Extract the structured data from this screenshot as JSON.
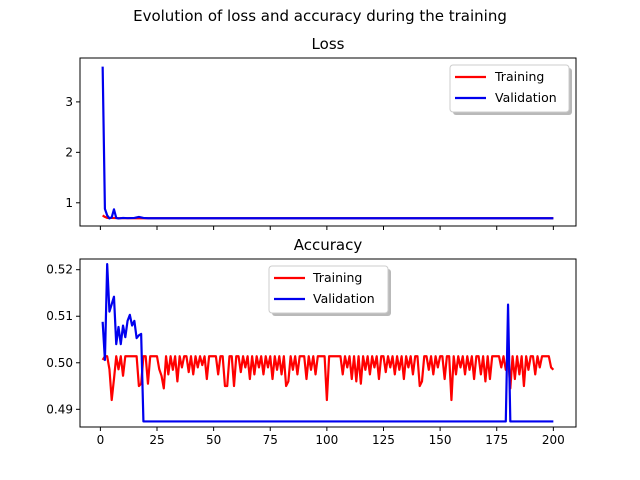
{
  "figure": {
    "suptitle": "Evolution of loss and accuracy during the training"
  },
  "colors": {
    "training": "#ff0000",
    "validation": "#0000ee",
    "axes": "#000000",
    "legend_border": "#cccccc",
    "legend_shadow": "#808080"
  },
  "chart_data": [
    {
      "type": "line",
      "title": "Loss",
      "xlabel": "",
      "ylabel": "",
      "xlim": [
        -9,
        210
      ],
      "ylim": [
        0.54,
        3.87
      ],
      "yticks": [
        1,
        2,
        3
      ],
      "ytick_labels": [
        "1",
        "2",
        "3"
      ],
      "xticks": [
        0,
        25,
        50,
        75,
        100,
        125,
        150,
        175,
        200
      ],
      "show_xtick_labels": false,
      "grid": false,
      "legend": "upper right",
      "series": [
        {
          "name": "Training",
          "color": "#ff0000",
          "points": [
            [
              1,
              0.75
            ],
            [
              2,
              0.72
            ],
            [
              3,
              0.7
            ],
            [
              5,
              0.7
            ],
            [
              8,
              0.695
            ],
            [
              12,
              0.695
            ],
            [
              16,
              0.693
            ],
            [
              20,
              0.693
            ],
            [
              30,
              0.693
            ],
            [
              100,
              0.693
            ],
            [
              200,
              0.693
            ]
          ]
        },
        {
          "name": "Validation",
          "color": "#0000ee",
          "points": [
            [
              1,
              3.7
            ],
            [
              2,
              0.88
            ],
            [
              3,
              0.75
            ],
            [
              4,
              0.69
            ],
            [
              5,
              0.71
            ],
            [
              6,
              0.87
            ],
            [
              7,
              0.7
            ],
            [
              8,
              0.69
            ],
            [
              10,
              0.7
            ],
            [
              12,
              0.695
            ],
            [
              15,
              0.7
            ],
            [
              17,
              0.72
            ],
            [
              19,
              0.7
            ],
            [
              21,
              0.693
            ],
            [
              50,
              0.693
            ],
            [
              100,
              0.693
            ],
            [
              150,
              0.693
            ],
            [
              200,
              0.693
            ]
          ]
        }
      ]
    },
    {
      "type": "line",
      "title": "Accuracy",
      "xlabel": "",
      "ylabel": "",
      "xlim": [
        -9,
        210
      ],
      "ylim": [
        0.4862,
        0.5223
      ],
      "yticks": [
        0.49,
        0.5,
        0.51,
        0.52
      ],
      "ytick_labels": [
        "0.49",
        "0.50",
        "0.51",
        "0.52"
      ],
      "xticks": [
        0,
        25,
        50,
        75,
        100,
        125,
        150,
        175,
        200
      ],
      "xtick_labels": [
        "0",
        "25",
        "50",
        "75",
        "100",
        "125",
        "150",
        "175",
        "200"
      ],
      "grid": false,
      "legend": "upper center",
      "series": [
        {
          "name": "Training",
          "color": "#ff0000",
          "points": [
            [
              1,
              0.5006
            ],
            [
              2,
              0.5014
            ],
            [
              3,
              0.5014
            ],
            [
              4,
              0.4986
            ],
            [
              5,
              0.492
            ],
            [
              6,
              0.4965
            ],
            [
              7,
              0.5014
            ],
            [
              8,
              0.4986
            ],
            [
              9,
              0.5014
            ],
            [
              10,
              0.4972
            ],
            [
              11,
              0.5014
            ],
            [
              12,
              0.5014
            ],
            [
              13,
              0.5014
            ],
            [
              14,
              0.5014
            ],
            [
              15,
              0.5014
            ],
            [
              16,
              0.5014
            ],
            [
              17,
              0.495
            ],
            [
              18,
              0.4955
            ],
            [
              19,
              0.5014
            ],
            [
              20,
              0.5014
            ],
            [
              21,
              0.4955
            ],
            [
              22,
              0.5014
            ],
            [
              23,
              0.5014
            ],
            [
              24,
              0.5014
            ],
            [
              25,
              0.5014
            ],
            [
              26,
              0.4986
            ],
            [
              27,
              0.4972
            ],
            [
              28,
              0.4945
            ],
            [
              29,
              0.5014
            ],
            [
              30,
              0.4975
            ],
            [
              31,
              0.5014
            ],
            [
              32,
              0.4985
            ],
            [
              33,
              0.5014
            ],
            [
              34,
              0.496
            ],
            [
              35,
              0.5014
            ],
            [
              36,
              0.499
            ],
            [
              37,
              0.5014
            ],
            [
              38,
              0.5014
            ],
            [
              39,
              0.498
            ],
            [
              40,
              0.5014
            ],
            [
              41,
              0.4975
            ],
            [
              42,
              0.5014
            ],
            [
              43,
              0.499
            ],
            [
              44,
              0.5014
            ],
            [
              45,
              0.4995
            ],
            [
              46,
              0.5014
            ],
            [
              47,
              0.4965
            ],
            [
              48,
              0.5014
            ],
            [
              49,
              0.5014
            ],
            [
              50,
              0.5014
            ],
            [
              51,
              0.5014
            ],
            [
              52,
              0.4975
            ],
            [
              53,
              0.5014
            ],
            [
              54,
              0.5014
            ],
            [
              55,
              0.495
            ],
            [
              56,
              0.495
            ],
            [
              57,
              0.5014
            ],
            [
              58,
              0.5014
            ],
            [
              59,
              0.495
            ],
            [
              60,
              0.5014
            ],
            [
              61,
              0.5014
            ],
            [
              62,
              0.498
            ],
            [
              63,
              0.5014
            ],
            [
              64,
              0.499
            ],
            [
              65,
              0.5014
            ],
            [
              66,
              0.4965
            ],
            [
              67,
              0.5014
            ],
            [
              68,
              0.4975
            ],
            [
              69,
              0.5014
            ],
            [
              70,
              0.499
            ],
            [
              71,
              0.5014
            ],
            [
              72,
              0.4975
            ],
            [
              73,
              0.5014
            ],
            [
              74,
              0.499
            ],
            [
              75,
              0.5014
            ],
            [
              76,
              0.4965
            ],
            [
              77,
              0.5014
            ],
            [
              78,
              0.4985
            ],
            [
              79,
              0.5014
            ],
            [
              80,
              0.4975
            ],
            [
              81,
              0.5014
            ],
            [
              82,
              0.495
            ],
            [
              83,
              0.496
            ],
            [
              84,
              0.5014
            ],
            [
              85,
              0.4985
            ],
            [
              86,
              0.5014
            ],
            [
              87,
              0.4975
            ],
            [
              88,
              0.5014
            ],
            [
              89,
              0.5014
            ],
            [
              90,
              0.5014
            ],
            [
              91,
              0.4965
            ],
            [
              92,
              0.5014
            ],
            [
              93,
              0.4985
            ],
            [
              94,
              0.5014
            ],
            [
              95,
              0.4975
            ],
            [
              96,
              0.5014
            ],
            [
              97,
              0.5014
            ],
            [
              98,
              0.5014
            ],
            [
              99,
              0.5014
            ],
            [
              100,
              0.492
            ],
            [
              101,
              0.5014
            ],
            [
              102,
              0.5014
            ],
            [
              103,
              0.5014
            ],
            [
              104,
              0.5014
            ],
            [
              105,
              0.5014
            ],
            [
              106,
              0.5014
            ],
            [
              107,
              0.4975
            ],
            [
              108,
              0.5014
            ],
            [
              109,
              0.499
            ],
            [
              110,
              0.5014
            ],
            [
              111,
              0.4965
            ],
            [
              112,
              0.5014
            ],
            [
              113,
              0.496
            ],
            [
              114,
              0.5014
            ],
            [
              115,
              0.4955
            ],
            [
              116,
              0.5014
            ],
            [
              117,
              0.4985
            ],
            [
              118,
              0.5014
            ],
            [
              119,
              0.4975
            ],
            [
              120,
              0.5014
            ],
            [
              121,
              0.499
            ],
            [
              122,
              0.5014
            ],
            [
              123,
              0.4965
            ],
            [
              124,
              0.5014
            ],
            [
              125,
              0.5014
            ],
            [
              126,
              0.498
            ],
            [
              127,
              0.5014
            ],
            [
              128,
              0.499
            ],
            [
              129,
              0.5014
            ],
            [
              130,
              0.4975
            ],
            [
              131,
              0.5014
            ],
            [
              132,
              0.4985
            ],
            [
              133,
              0.5014
            ],
            [
              134,
              0.4965
            ],
            [
              135,
              0.5014
            ],
            [
              136,
              0.499
            ],
            [
              137,
              0.5014
            ],
            [
              138,
              0.4975
            ],
            [
              139,
              0.5014
            ],
            [
              140,
              0.5014
            ],
            [
              141,
              0.495
            ],
            [
              142,
              0.496
            ],
            [
              143,
              0.5014
            ],
            [
              144,
              0.5014
            ],
            [
              145,
              0.4985
            ],
            [
              146,
              0.5014
            ],
            [
              147,
              0.4975
            ],
            [
              148,
              0.5014
            ],
            [
              149,
              0.499
            ],
            [
              150,
              0.5014
            ],
            [
              151,
              0.5014
            ],
            [
              152,
              0.4965
            ],
            [
              153,
              0.5014
            ],
            [
              154,
              0.5014
            ],
            [
              155,
              0.492
            ],
            [
              156,
              0.5014
            ],
            [
              157,
              0.4975
            ],
            [
              158,
              0.5014
            ],
            [
              159,
              0.499
            ],
            [
              160,
              0.5014
            ],
            [
              161,
              0.4975
            ],
            [
              162,
              0.5014
            ],
            [
              163,
              0.4985
            ],
            [
              164,
              0.5014
            ],
            [
              165,
              0.4965
            ],
            [
              166,
              0.5014
            ],
            [
              167,
              0.5014
            ],
            [
              168,
              0.4975
            ],
            [
              169,
              0.5014
            ],
            [
              170,
              0.496
            ],
            [
              171,
              0.5014
            ],
            [
              172,
              0.4965
            ],
            [
              173,
              0.5014
            ],
            [
              174,
              0.5014
            ],
            [
              175,
              0.5014
            ],
            [
              176,
              0.5014
            ],
            [
              177,
              0.499
            ],
            [
              178,
              0.5014
            ],
            [
              179,
              0.4985
            ],
            [
              180,
              0.5014
            ],
            [
              181,
              0.4945
            ],
            [
              182,
              0.5014
            ],
            [
              183,
              0.4965
            ],
            [
              184,
              0.5014
            ],
            [
              185,
              0.4975
            ],
            [
              186,
              0.5014
            ],
            [
              187,
              0.495
            ],
            [
              188,
              0.5014
            ],
            [
              189,
              0.4985
            ],
            [
              190,
              0.5014
            ],
            [
              191,
              0.5014
            ],
            [
              192,
              0.4975
            ],
            [
              193,
              0.5014
            ],
            [
              194,
              0.499
            ],
            [
              195,
              0.5014
            ],
            [
              196,
              0.5014
            ],
            [
              197,
              0.5014
            ],
            [
              198,
              0.5014
            ],
            [
              199,
              0.499
            ],
            [
              200,
              0.4985
            ]
          ]
        },
        {
          "name": "Validation",
          "color": "#0000ee",
          "points": [
            [
              1,
              0.5088
            ],
            [
              2,
              0.5006
            ],
            [
              3,
              0.5212
            ],
            [
              4,
              0.511
            ],
            [
              5,
              0.5126
            ],
            [
              6,
              0.5142
            ],
            [
              7,
              0.504
            ],
            [
              8,
              0.5077
            ],
            [
              9,
              0.504
            ],
            [
              10,
              0.508
            ],
            [
              11,
              0.5055
            ],
            [
              12,
              0.509
            ],
            [
              13,
              0.5103
            ],
            [
              14,
              0.508
            ],
            [
              15,
              0.509
            ],
            [
              16,
              0.5053
            ],
            [
              17,
              0.5059
            ],
            [
              18,
              0.5062
            ],
            [
              19,
              0.4874
            ],
            [
              20,
              0.4874
            ],
            [
              30,
              0.4874
            ],
            [
              50,
              0.4874
            ],
            [
              75,
              0.4874
            ],
            [
              100,
              0.4874
            ],
            [
              125,
              0.4874
            ],
            [
              150,
              0.4874
            ],
            [
              175,
              0.4874
            ],
            [
              178,
              0.4874
            ],
            [
              179,
              0.4874
            ],
            [
              180,
              0.5125
            ],
            [
              181,
              0.4874
            ],
            [
              190,
              0.4874
            ],
            [
              200,
              0.4874
            ]
          ]
        }
      ]
    }
  ]
}
